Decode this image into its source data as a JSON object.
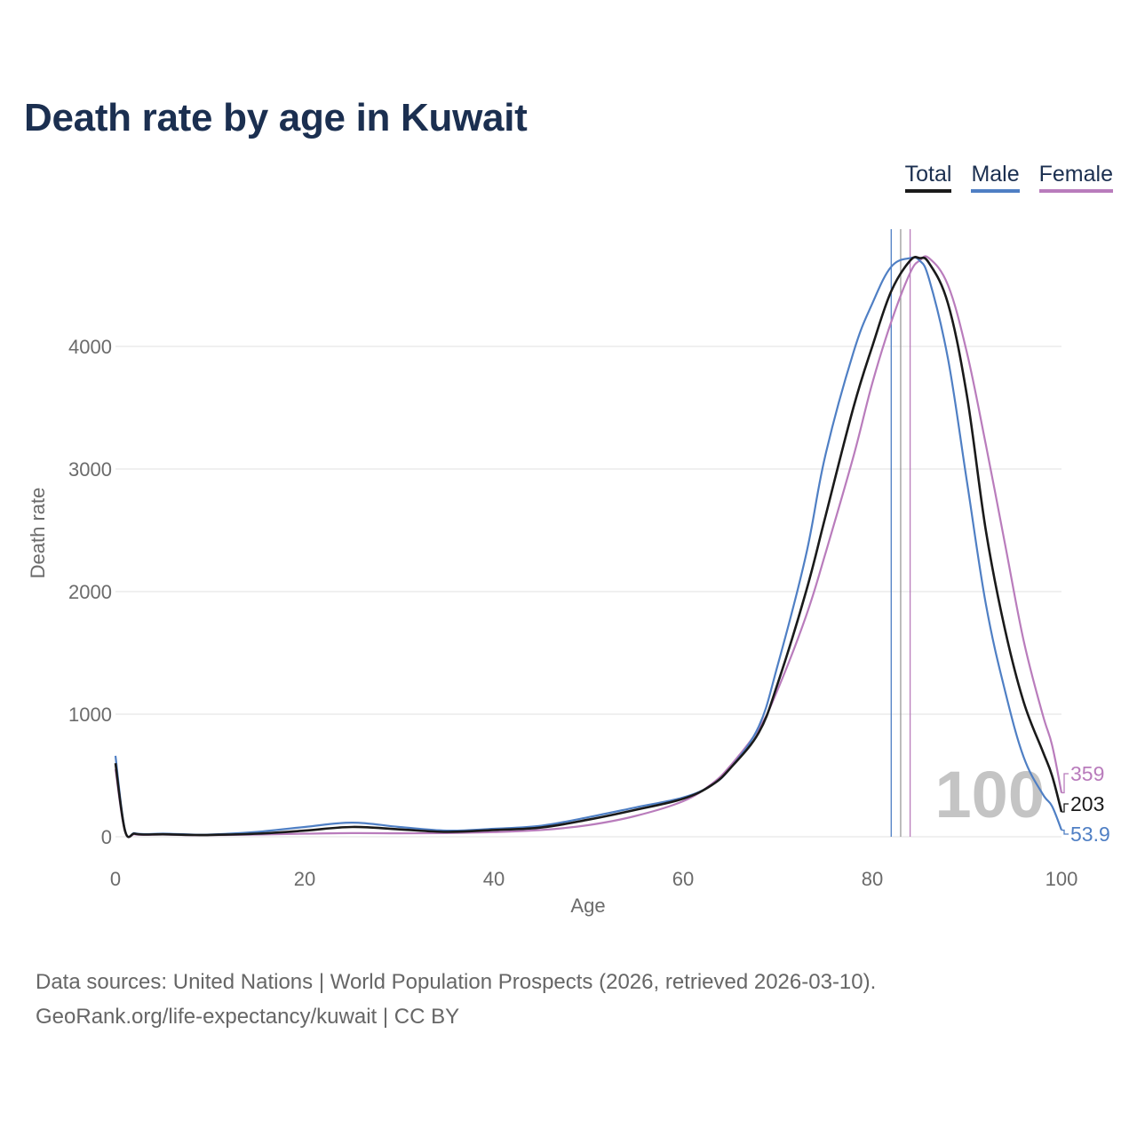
{
  "title": "Death rate by age in Kuwait",
  "legend": [
    {
      "label": "Total",
      "color": "#1a1a1a"
    },
    {
      "label": "Male",
      "color": "#4f7fc4"
    },
    {
      "label": "Female",
      "color": "#b97cbc"
    }
  ],
  "chart_data": {
    "type": "line",
    "title": "Death rate by age in Kuwait",
    "xlabel": "Age",
    "ylabel": "Death rate",
    "xlim": [
      0,
      100
    ],
    "ylim": [
      0,
      4800
    ],
    "xticks": [
      0,
      20,
      40,
      60,
      80,
      100
    ],
    "yticks": [
      0,
      1000,
      2000,
      3000,
      4000
    ],
    "xtick_labels": [
      "0",
      "20",
      "40",
      "60",
      "80",
      "100"
    ],
    "ytick_labels": [
      "0",
      "1000",
      "2000",
      "3000",
      "4000"
    ],
    "grid": true,
    "year_label": "100",
    "series": [
      {
        "name": "Total",
        "color": "#1a1a1a",
        "end_label": "203",
        "reference_age": 83,
        "x": [
          0,
          1,
          2,
          3,
          5,
          8,
          10,
          15,
          20,
          25,
          30,
          35,
          40,
          45,
          50,
          55,
          60,
          63,
          65,
          68,
          70,
          73,
          75,
          78,
          80,
          82,
          84,
          85,
          86,
          88,
          90,
          92,
          94,
          96,
          98,
          99,
          100
        ],
        "values": [
          600,
          50,
          25,
          18,
          20,
          15,
          15,
          25,
          50,
          80,
          60,
          40,
          55,
          75,
          140,
          220,
          310,
          420,
          560,
          850,
          1250,
          2000,
          2600,
          3500,
          4000,
          4450,
          4700,
          4720,
          4680,
          4350,
          3600,
          2500,
          1700,
          1100,
          700,
          500,
          203
        ]
      },
      {
        "name": "Male",
        "color": "#4f7fc4",
        "end_label": "53.9",
        "reference_age": 82,
        "x": [
          0,
          1,
          2,
          3,
          5,
          8,
          10,
          15,
          20,
          25,
          30,
          35,
          40,
          45,
          50,
          55,
          60,
          63,
          65,
          68,
          70,
          73,
          75,
          78,
          80,
          82,
          84,
          85,
          86,
          88,
          90,
          92,
          94,
          96,
          98,
          99,
          100
        ],
        "values": [
          660,
          55,
          30,
          22,
          25,
          18,
          18,
          40,
          80,
          115,
          80,
          50,
          65,
          90,
          160,
          240,
          320,
          420,
          560,
          900,
          1400,
          2300,
          3100,
          3950,
          4350,
          4650,
          4720,
          4700,
          4550,
          3900,
          2900,
          1900,
          1200,
          650,
          350,
          250,
          54
        ]
      },
      {
        "name": "Female",
        "color": "#b97cbc",
        "end_label": "359",
        "reference_age": 84,
        "x": [
          0,
          1,
          2,
          3,
          5,
          8,
          10,
          15,
          20,
          25,
          30,
          35,
          40,
          45,
          50,
          55,
          60,
          63,
          65,
          68,
          70,
          73,
          75,
          78,
          80,
          82,
          84,
          85,
          86,
          88,
          90,
          92,
          94,
          96,
          98,
          99,
          100
        ],
        "values": [
          550,
          45,
          20,
          15,
          18,
          13,
          13,
          18,
          25,
          30,
          28,
          30,
          38,
          55,
          95,
          170,
          290,
          430,
          580,
          880,
          1200,
          1800,
          2300,
          3100,
          3700,
          4200,
          4600,
          4700,
          4720,
          4500,
          3950,
          3200,
          2400,
          1600,
          1000,
          750,
          359
        ]
      }
    ]
  },
  "footer": {
    "source": "Data sources: United Nations | World Population Prospects (2026, retrieved 2026-03-10).",
    "credit": "GeoRank.org/life-expectancy/kuwait | CC BY"
  }
}
